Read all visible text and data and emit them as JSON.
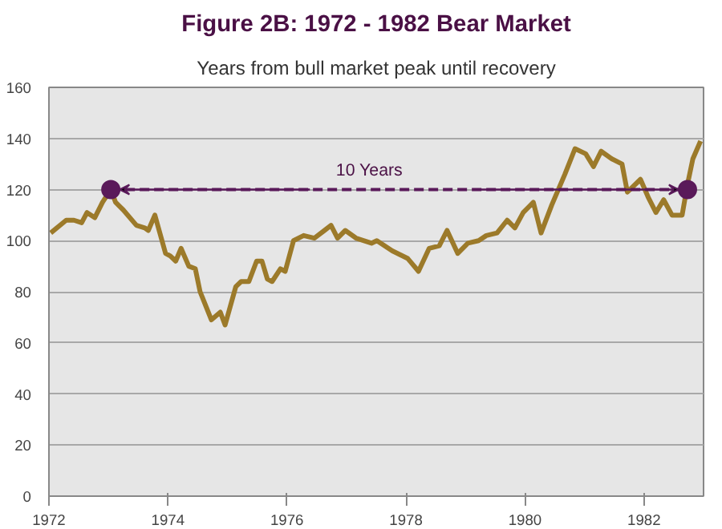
{
  "chart_data": {
    "type": "line",
    "title": "Figure 2B: 1972 - 1982 Bear Market",
    "subtitle": "Years from bull market peak until recovery",
    "xlim": [
      1972,
      1983
    ],
    "xticks": [
      1972,
      1974,
      1976,
      1978,
      1980,
      1982
    ],
    "ylim": [
      0,
      160
    ],
    "yticks": [
      0,
      20,
      40,
      60,
      80,
      100,
      120,
      140,
      160
    ],
    "grid": "y",
    "annotations": [
      "10 Years"
    ],
    "series": [
      {
        "color": "#9c7a2a",
        "x": [
          1972.03,
          1972.29,
          1972.42,
          1972.55,
          1972.64,
          1972.77,
          1972.9,
          1973.04,
          1973.12,
          1973.25,
          1973.47,
          1973.61,
          1973.67,
          1973.78,
          1973.96,
          1974.04,
          1974.13,
          1974.22,
          1974.35,
          1974.46,
          1974.54,
          1974.73,
          1974.88,
          1974.96,
          1975.14,
          1975.23,
          1975.36,
          1975.49,
          1975.58,
          1975.67,
          1975.75,
          1975.89,
          1975.97,
          1976.11,
          1976.28,
          1976.46,
          1976.63,
          1976.74,
          1976.85,
          1976.98,
          1977.16,
          1977.42,
          1977.51,
          1977.77,
          1978.03,
          1978.21,
          1978.39,
          1978.56,
          1978.69,
          1978.87,
          1979.04,
          1979.22,
          1979.35,
          1979.53,
          1979.7,
          1979.83,
          1979.97,
          1980.14,
          1980.27,
          1980.45,
          1980.67,
          1980.84,
          1981.02,
          1981.15,
          1981.28,
          1981.46,
          1981.63,
          1981.72,
          1981.94,
          1982.07,
          1982.2,
          1982.33,
          1982.47,
          1982.64,
          1982.73,
          1982.82,
          1982.95
        ],
        "values": [
          103,
          108,
          108,
          107,
          111,
          109,
          115,
          120,
          115,
          112,
          106,
          105,
          104,
          110,
          95,
          94,
          92,
          97,
          90,
          89,
          80,
          69,
          72,
          67,
          82,
          84,
          84,
          92,
          92,
          85,
          84,
          89,
          88,
          100,
          102,
          101,
          104,
          106,
          101,
          104,
          101,
          99,
          100,
          96,
          93,
          88,
          97,
          98,
          104,
          95,
          99,
          100,
          102,
          103,
          108,
          105,
          111,
          115,
          103,
          114,
          126,
          136,
          134,
          129,
          135,
          132,
          130,
          119,
          124,
          117,
          111,
          116,
          110,
          110,
          122,
          132,
          139
        ]
      },
      {
        "color": "#5a1a5a",
        "line_style": "dashed",
        "marker": "circle",
        "x": [
          1973.04,
          1982.73
        ],
        "values": [
          120,
          120
        ]
      }
    ]
  }
}
